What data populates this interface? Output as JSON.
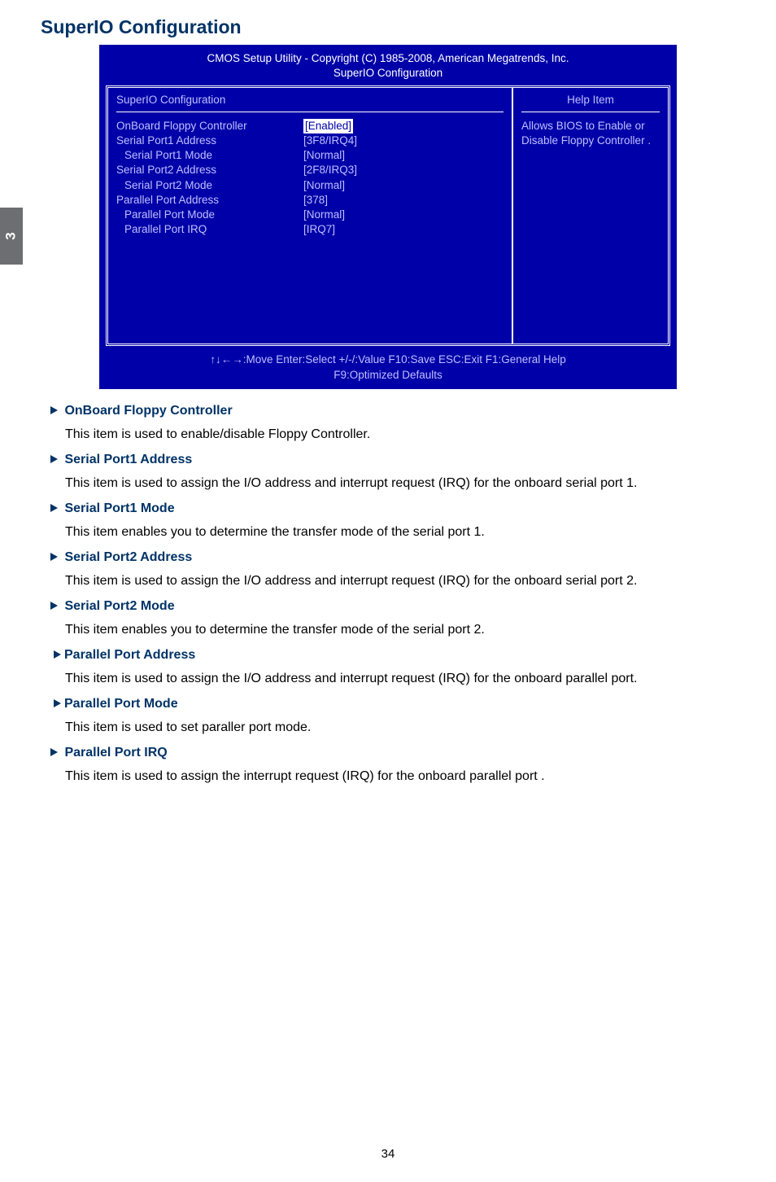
{
  "page_tab": "3",
  "title": "SuperIO Configuration",
  "bios": {
    "header_line1": "CMOS Setup Utility - Copyright (C) 1985-2008, American Megatrends, Inc.",
    "header_line2": "SuperIO Configuration",
    "left_heading": "SuperIO Configuration",
    "rows": [
      {
        "label": "OnBoard Floppy Controller",
        "value": "[Enabled]",
        "highlighted": true,
        "indent": false
      },
      {
        "label": "Serial Port1 Address",
        "value": "[3F8/IRQ4]",
        "highlighted": false,
        "indent": false
      },
      {
        "label": "Serial Port1 Mode",
        "value": "[Normal]",
        "highlighted": false,
        "indent": true
      },
      {
        "label": "Serial Port2 Address",
        "value": "[2F8/IRQ3]",
        "highlighted": false,
        "indent": false
      },
      {
        "label": "Serial Port2 Mode",
        "value": "[Normal]",
        "highlighted": false,
        "indent": true
      },
      {
        "label": "Parallel Port Address",
        "value": "[378]",
        "highlighted": false,
        "indent": false
      },
      {
        "label": "Parallel Port Mode",
        "value": "[Normal]",
        "highlighted": false,
        "indent": true
      },
      {
        "label": "Parallel Port IRQ",
        "value": "[IRQ7]",
        "highlighted": false,
        "indent": true
      }
    ],
    "right_heading": "Help Item",
    "help_text": "Allows BIOS to Enable or Disable Floppy Controller .",
    "footer_line1": "↑↓←→:Move   Enter:Select   +/-/:Value   F10:Save   ESC:Exit    F1:General Help",
    "footer_line2": "F9:Optimized Defaults"
  },
  "items": [
    {
      "head": "OnBoard Floppy Controller",
      "body": "This item is used to enable/disable Floppy Controller.",
      "tight": false
    },
    {
      "head": "Serial Port1 Address",
      "body": "This item is used to assign the I/O address and interrupt request (IRQ) for the onboard serial port 1.",
      "tight": false
    },
    {
      "head": "Serial Port1 Mode",
      "body": "This item enables you to determine the transfer mode of the serial port 1.",
      "tight": false
    },
    {
      "head": "Serial Port2 Address",
      "body": "This item is used to assign the I/O address and interrupt request (IRQ) for the onboard serial port 2.",
      "tight": false
    },
    {
      "head": "Serial Port2 Mode",
      "body": "This item enables you to determine the transfer mode of the serial port 2.",
      "tight": false
    },
    {
      "head": "Parallel Port Address",
      "body": "This item is used to assign the I/O address and interrupt request (IRQ) for the onboard parallel port.",
      "tight": true
    },
    {
      "head": "Parallel Port Mode",
      "body": "This item is used to set paraller port mode.",
      "tight": true
    },
    {
      "head": "Parallel Port IRQ",
      "body": "This item is used to assign the interrupt request (IRQ) for the onboard parallel port .",
      "tight": false
    }
  ],
  "page_number": "34",
  "colors": {
    "heading": "#003366",
    "bios_bg": "#0000a8",
    "bios_fg": "#bfbfff",
    "tab_bg": "#6d6e71"
  }
}
